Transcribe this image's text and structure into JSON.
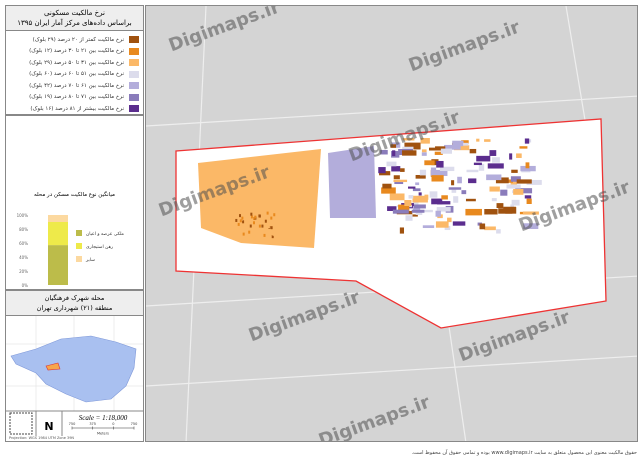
{
  "legend": {
    "title": "نرخ مالکیت مسکونی",
    "subtitle": "براساس داده‌های مرکز آمار ایران ۱۳۹۵",
    "items": [
      {
        "label": "نرخ مالکیت کمتر از ۲۰ درصد (۲۹ بلوک)",
        "color": "#a0520f"
      },
      {
        "label": "نرخ مالکیت بین ۲۱ تا ۳۰ درصد (۱۲ بلوک)",
        "color": "#e8891e"
      },
      {
        "label": "نرخ مالکیت بین ۳۱ تا ۵۰ درصد (۲۹ بلوک)",
        "color": "#fbb867"
      },
      {
        "label": "نرخ مالکیت بین ۵۱ تا ۶۰ درصد (۶۰ بلوک)",
        "color": "#dcdcec"
      },
      {
        "label": "نرخ مالکیت بین ۶۱ تا ۷۰ درصد (۴۲ بلوک)",
        "color": "#b3addb"
      },
      {
        "label": "نرخ مالکیت بین ۷۱ تا ۸۰ درصد (۱۹ بلوک)",
        "color": "#8a7cbb"
      },
      {
        "label": "نرخ مالکیت بیشتر از ۸۱ درصد (۱۶ بلوک)",
        "color": "#5b2d8e"
      }
    ]
  },
  "chart_data": {
    "type": "bar",
    "stacked": true,
    "title": "میانگین نوع مالکیت مسکن در محله",
    "yticks": [
      "0%",
      "20%",
      "40%",
      "60%",
      "80%",
      "100%"
    ],
    "ylim": [
      0,
      100
    ],
    "series": [
      {
        "name": "ملکی عرصه و اعیان",
        "value": 57,
        "color": "#bcbc4a"
      },
      {
        "name": "رهن استیجاری",
        "value": 33,
        "color": "#eeea4a"
      },
      {
        "name": "سایر",
        "value": 10,
        "color": "#fcd9a0"
      }
    ]
  },
  "inset": {
    "title": "محله شهرک فرهنگیان",
    "subtitle": "منطقه (۲۱) شهرداری تهران",
    "scale": "Scale = 1:18,000",
    "scale_unit": "Meters",
    "scale_ticks": [
      "750",
      "375",
      "0",
      "750"
    ]
  },
  "watermark": "Digimaps.ir",
  "footer": "حقوق مالکیت معنوی این محصول متعلق به سایت www.digimaps.ir بوده و تمامی حقوق آن محفوظ است.",
  "credit": "Projection: WGS 1984 UTM Zone 39N"
}
